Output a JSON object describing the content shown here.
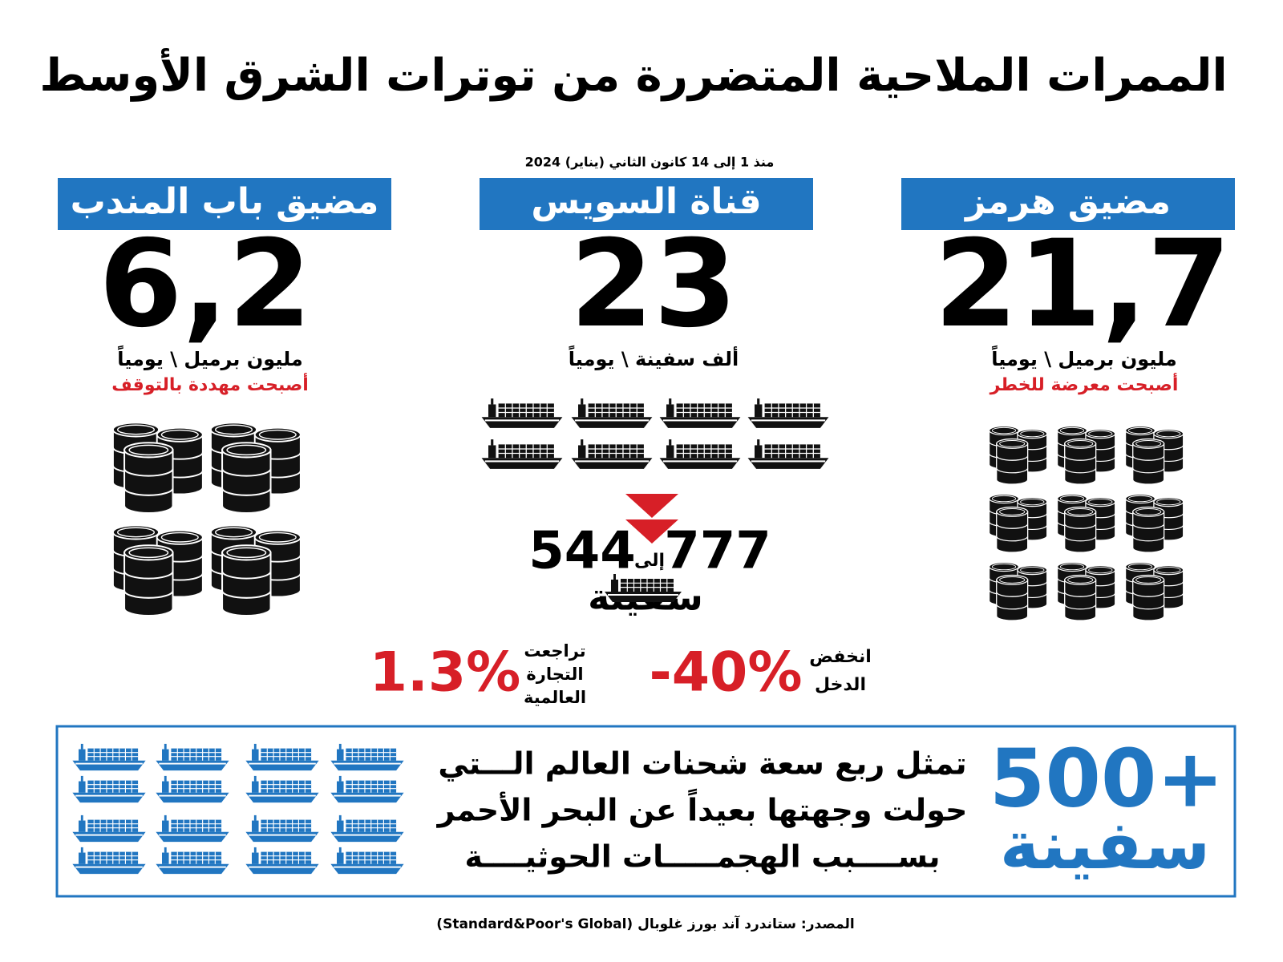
{
  "header": {
    "title": "الممرات الملاحية المتضررة من توترات الشرق الأوسط",
    "subtitle": "منذ 1 إلى 14 كانون الثاني (يناير) 2024"
  },
  "columns": [
    {
      "header": "مضيق هرمز",
      "value": "21,7",
      "unit": "مليون برميل \\ يومياً",
      "status": "أصبحت معرضة للخطر"
    },
    {
      "header": "قناة السويس",
      "value": "23",
      "unit": "ألف سفينة \\ يومياً"
    },
    {
      "header": "مضيق باب المندب",
      "value": "6,2",
      "unit": "مليون برميل \\ يومياً",
      "status": "أصبحت مهددة بالتوقف"
    }
  ],
  "suez_ships": {
    "from": "777",
    "connector": "إلى",
    "to": "544",
    "unit": "سفينة"
  },
  "stats": [
    {
      "value": "-40%",
      "label_lines": [
        "انخفض",
        "الدخل"
      ]
    },
    {
      "value": "1.3%",
      "label_lines": [
        "تراجعت",
        "التجارة",
        "العالمية"
      ]
    }
  ],
  "rerouted": {
    "value": "500+",
    "unit": "سفينة",
    "lines": [
      "تمثل ربع سعة شحنات العالم الـــتي",
      "حولت وجهتها بعيداً عن البحر الأحمر",
      "بســــبب الهجمـــــات الحوثيــــة"
    ]
  },
  "source": "المصدر: ستاندرد آند بورز غلوبال (Standard&Poor's Global)"
}
